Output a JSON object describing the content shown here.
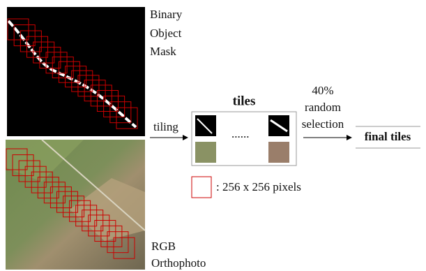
{
  "mask_label": [
    "Binary",
    "Object",
    "Mask"
  ],
  "photo_label": [
    "RGB",
    "Orthophoto"
  ],
  "tiling_label": "tiling",
  "tiles_title": "tiles",
  "tiles_ellipsis": "......",
  "selection_label": [
    "40%",
    "random",
    "selection"
  ],
  "final_label": "final tiles",
  "legend_label": ": 256 x 256 pixels"
}
